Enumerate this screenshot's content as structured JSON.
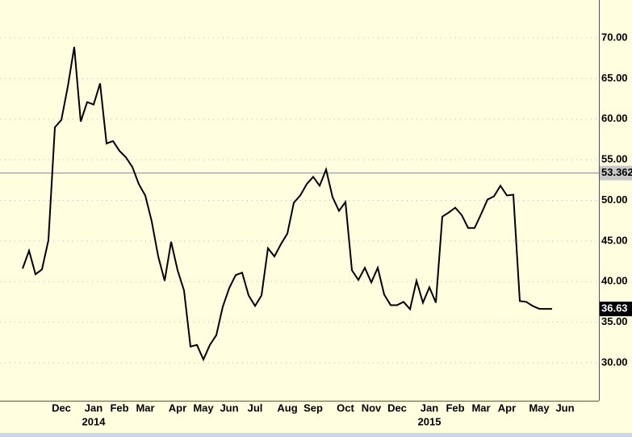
{
  "chart_data": {
    "type": "line",
    "categories": [
      null,
      null,
      null,
      null,
      null,
      null,
      "Dec",
      null,
      null,
      null,
      null,
      "Jan",
      null,
      null,
      null,
      "Feb",
      null,
      null,
      null,
      "Mar",
      null,
      null,
      null,
      null,
      "Apr",
      null,
      null,
      null,
      "May",
      null,
      null,
      null,
      "Jun",
      null,
      null,
      null,
      "Jul",
      null,
      null,
      null,
      null,
      "Aug",
      null,
      null,
      null,
      "Sep",
      null,
      null,
      null,
      null,
      "Oct",
      null,
      null,
      null,
      "Nov",
      null,
      null,
      null,
      "Dec",
      null,
      null,
      null,
      null,
      "Jan",
      null,
      null,
      null,
      "Feb",
      null,
      null,
      null,
      "Mar",
      null,
      null,
      null,
      "Apr",
      null,
      null,
      null,
      null,
      "May",
      null,
      null,
      null,
      "Jun"
    ],
    "year_categories": [
      null,
      null,
      null,
      null,
      null,
      null,
      null,
      null,
      null,
      null,
      null,
      "2014",
      null,
      null,
      null,
      null,
      null,
      null,
      null,
      null,
      null,
      null,
      null,
      null,
      null,
      null,
      null,
      null,
      null,
      null,
      null,
      null,
      null,
      null,
      null,
      null,
      null,
      null,
      null,
      null,
      null,
      null,
      null,
      null,
      null,
      null,
      null,
      null,
      null,
      null,
      null,
      null,
      null,
      null,
      null,
      null,
      null,
      null,
      null,
      null,
      null,
      null,
      null,
      "2015",
      null,
      null,
      null,
      null,
      null,
      null,
      null,
      null,
      null,
      null,
      null,
      null,
      null,
      null,
      null,
      null,
      null,
      null,
      null,
      null,
      null
    ],
    "series": [
      {
        "color": "#000000",
        "values": [
          41.6,
          43.8,
          40.9,
          41.5,
          45.1,
          59.0,
          59.9,
          64.0,
          68.9,
          59.7,
          62.1,
          61.8,
          64.4,
          57.0,
          57.3,
          56.1,
          55.3,
          54.1,
          52.0,
          50.6,
          47.4,
          43.1,
          40.1,
          44.9,
          41.4,
          38.9,
          32.0,
          32.2,
          30.4,
          32.2,
          33.4,
          36.9,
          39.2,
          40.8,
          41.1,
          38.3,
          37.0,
          38.3,
          44.1,
          43.1,
          44.6,
          45.9,
          49.7,
          50.6,
          52.0,
          52.9,
          51.8,
          53.8,
          50.4,
          48.7,
          49.8,
          41.4,
          40.2,
          41.7,
          39.9,
          41.7,
          38.4,
          37.1,
          37.1,
          37.5,
          36.6,
          40.1,
          37.4,
          39.3,
          37.4,
          48.0,
          48.5,
          49.1,
          48.2,
          46.6,
          46.6,
          48.3,
          50.1,
          50.5,
          51.8,
          50.6,
          50.7,
          37.6,
          37.5,
          37.0,
          36.65,
          36.63,
          36.63,
          null,
          null
        ]
      }
    ],
    "reference_line": 53.362,
    "ylim": [
      25.33,
      74.67
    ],
    "yticks": [
      {
        "value": 30,
        "label": "30.00"
      },
      {
        "value": 35,
        "label": "35.00"
      },
      {
        "value": 40,
        "label": "40.00"
      },
      {
        "value": 45,
        "label": "45.00"
      },
      {
        "value": 50,
        "label": "50.00"
      },
      {
        "value": 55,
        "label": "55.00"
      },
      {
        "value": 60,
        "label": "60.00"
      },
      {
        "value": 65,
        "label": "65.00"
      },
      {
        "value": 70,
        "label": "70.00"
      }
    ],
    "grid": true
  }
}
